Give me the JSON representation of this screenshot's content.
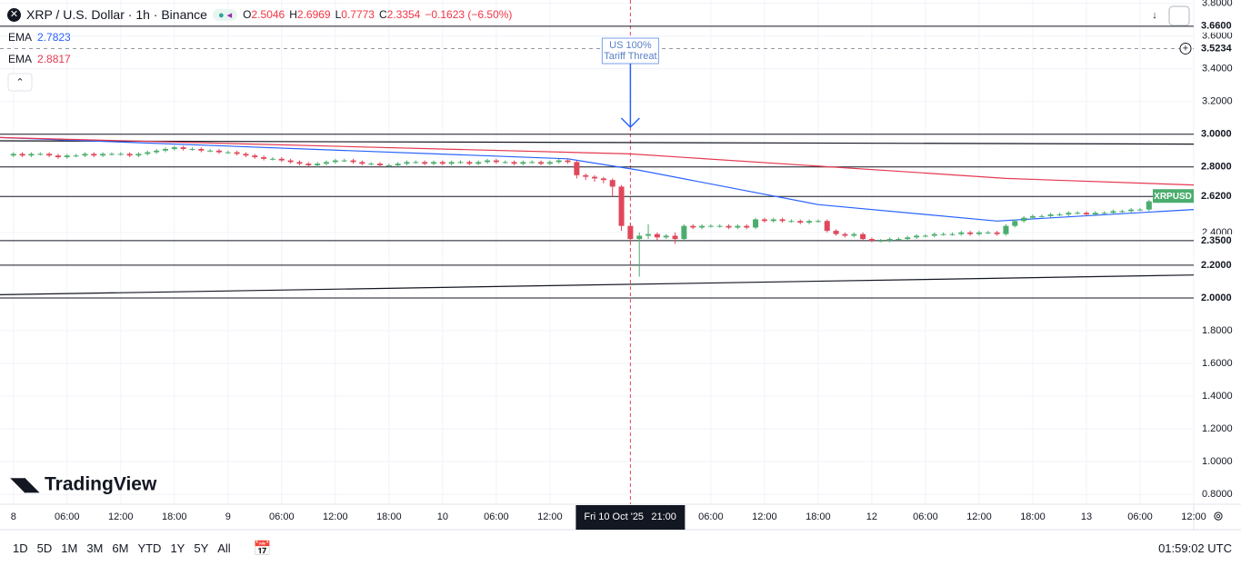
{
  "header": {
    "symbol": "XRP / U.S. Dollar · 1h · Binance",
    "ohlc": [
      {
        "key": "O",
        "value": "2.5046"
      },
      {
        "key": "H",
        "value": "2.6969"
      },
      {
        "key": "L",
        "value": "0.7773"
      },
      {
        "key": "C",
        "value": "2.3354"
      }
    ],
    "change": "−0.1623 (−6.50%)"
  },
  "chart_data": {
    "type": "candlestick",
    "up_color": "#4bad6d",
    "down_color": "#e0475b",
    "open": [
      2.87,
      2.88,
      2.87,
      2.88,
      2.88,
      2.87,
      2.86,
      2.87,
      2.87,
      2.88,
      2.87,
      2.88,
      2.88,
      2.88,
      2.87,
      2.88,
      2.89,
      2.9,
      2.91,
      2.92,
      2.91,
      2.91,
      2.9,
      2.9,
      2.89,
      2.89,
      2.88,
      2.87,
      2.86,
      2.85,
      2.85,
      2.84,
      2.83,
      2.82,
      2.81,
      2.82,
      2.83,
      2.84,
      2.84,
      2.83,
      2.82,
      2.82,
      2.81,
      2.81,
      2.82,
      2.83,
      2.83,
      2.82,
      2.83,
      2.82,
      2.83,
      2.83,
      2.82,
      2.83,
      2.84,
      2.83,
      2.83,
      2.82,
      2.83,
      2.83,
      2.82,
      2.83,
      2.84,
      2.83,
      2.75,
      2.74,
      2.73,
      2.72,
      2.68,
      2.44,
      2.36,
      2.38,
      2.39,
      2.37,
      2.38,
      2.36,
      2.44,
      2.43,
      2.44,
      2.44,
      2.44,
      2.43,
      2.44,
      2.43,
      2.48,
      2.47,
      2.48,
      2.47,
      2.47,
      2.46,
      2.47,
      2.47,
      2.41,
      2.39,
      2.38,
      2.39,
      2.36,
      2.35,
      2.35,
      2.36,
      2.36,
      2.37,
      2.38,
      2.38,
      2.39,
      2.39,
      2.39,
      2.4,
      2.39,
      2.4,
      2.4,
      2.39,
      2.44,
      2.47,
      2.49,
      2.5,
      2.5,
      2.51,
      2.51,
      2.52,
      2.52,
      2.51,
      2.52,
      2.52,
      2.53,
      2.53,
      2.54,
      2.54,
      2.59,
      2.61
    ],
    "high": [
      2.89,
      2.89,
      2.89,
      2.89,
      2.89,
      2.88,
      2.88,
      2.88,
      2.89,
      2.89,
      2.89,
      2.89,
      2.89,
      2.89,
      2.89,
      2.9,
      2.91,
      2.92,
      2.93,
      2.93,
      2.92,
      2.92,
      2.91,
      2.91,
      2.9,
      2.9,
      2.89,
      2.88,
      2.87,
      2.86,
      2.86,
      2.85,
      2.84,
      2.83,
      2.83,
      2.84,
      2.85,
      2.85,
      2.85,
      2.84,
      2.83,
      2.83,
      2.82,
      2.83,
      2.84,
      2.84,
      2.84,
      2.84,
      2.84,
      2.84,
      2.84,
      2.84,
      2.84,
      2.85,
      2.85,
      2.84,
      2.84,
      2.84,
      2.84,
      2.84,
      2.84,
      2.85,
      2.85,
      2.84,
      2.76,
      2.75,
      2.74,
      2.73,
      2.69,
      2.46,
      2.4,
      2.45,
      2.4,
      2.39,
      2.4,
      2.45,
      2.45,
      2.45,
      2.45,
      2.45,
      2.45,
      2.45,
      2.45,
      2.49,
      2.49,
      2.49,
      2.49,
      2.48,
      2.48,
      2.48,
      2.48,
      2.48,
      2.42,
      2.4,
      2.4,
      2.4,
      2.37,
      2.36,
      2.37,
      2.37,
      2.38,
      2.39,
      2.39,
      2.4,
      2.4,
      2.4,
      2.41,
      2.41,
      2.41,
      2.41,
      2.41,
      2.45,
      2.48,
      2.5,
      2.51,
      2.51,
      2.52,
      2.52,
      2.53,
      2.53,
      2.53,
      2.53,
      2.53,
      2.54,
      2.54,
      2.55,
      2.55,
      2.6,
      2.62,
      2.63
    ],
    "low": [
      2.86,
      2.86,
      2.86,
      2.87,
      2.86,
      2.85,
      2.85,
      2.86,
      2.86,
      2.86,
      2.86,
      2.87,
      2.87,
      2.86,
      2.86,
      2.87,
      2.88,
      2.89,
      2.9,
      2.9,
      2.9,
      2.89,
      2.89,
      2.88,
      2.88,
      2.87,
      2.86,
      2.85,
      2.84,
      2.84,
      2.83,
      2.82,
      2.81,
      2.8,
      2.8,
      2.81,
      2.82,
      2.83,
      2.82,
      2.81,
      2.81,
      2.8,
      2.8,
      2.8,
      2.81,
      2.82,
      2.81,
      2.81,
      2.81,
      2.81,
      2.82,
      2.81,
      2.81,
      2.82,
      2.82,
      2.82,
      2.81,
      2.81,
      2.82,
      2.81,
      2.81,
      2.82,
      2.82,
      2.73,
      2.72,
      2.71,
      2.7,
      2.62,
      2.41,
      2.34,
      2.13,
      2.36,
      2.35,
      2.36,
      2.33,
      2.35,
      2.42,
      2.42,
      2.43,
      2.43,
      2.42,
      2.42,
      2.42,
      2.42,
      2.46,
      2.46,
      2.46,
      2.46,
      2.45,
      2.45,
      2.46,
      2.4,
      2.38,
      2.37,
      2.37,
      2.35,
      2.34,
      2.34,
      2.34,
      2.35,
      2.35,
      2.36,
      2.37,
      2.37,
      2.38,
      2.38,
      2.38,
      2.38,
      2.38,
      2.39,
      2.38,
      2.38,
      2.43,
      2.46,
      2.48,
      2.49,
      2.49,
      2.5,
      2.5,
      2.51,
      2.5,
      2.5,
      2.51,
      2.51,
      2.52,
      2.52,
      2.53,
      2.53,
      2.58,
      2.6
    ],
    "close": [
      2.88,
      2.87,
      2.88,
      2.88,
      2.87,
      2.86,
      2.87,
      2.87,
      2.88,
      2.87,
      2.88,
      2.88,
      2.88,
      2.87,
      2.88,
      2.89,
      2.9,
      2.91,
      2.92,
      2.91,
      2.91,
      2.9,
      2.9,
      2.89,
      2.89,
      2.88,
      2.87,
      2.86,
      2.85,
      2.85,
      2.84,
      2.83,
      2.82,
      2.81,
      2.82,
      2.83,
      2.84,
      2.84,
      2.83,
      2.82,
      2.82,
      2.81,
      2.81,
      2.82,
      2.83,
      2.83,
      2.82,
      2.83,
      2.82,
      2.83,
      2.83,
      2.82,
      2.83,
      2.84,
      2.83,
      2.83,
      2.82,
      2.83,
      2.83,
      2.82,
      2.83,
      2.84,
      2.83,
      2.75,
      2.74,
      2.73,
      2.72,
      2.68,
      2.44,
      2.36,
      2.38,
      2.39,
      2.37,
      2.38,
      2.36,
      2.44,
      2.43,
      2.44,
      2.44,
      2.44,
      2.43,
      2.44,
      2.43,
      2.48,
      2.47,
      2.48,
      2.47,
      2.47,
      2.46,
      2.47,
      2.47,
      2.41,
      2.39,
      2.38,
      2.39,
      2.36,
      2.35,
      2.35,
      2.36,
      2.36,
      2.37,
      2.38,
      2.38,
      2.39,
      2.39,
      2.39,
      2.4,
      2.39,
      2.4,
      2.4,
      2.39,
      2.44,
      2.47,
      2.49,
      2.5,
      2.5,
      2.51,
      2.51,
      2.52,
      2.52,
      2.51,
      2.52,
      2.52,
      2.53,
      2.53,
      2.54,
      2.54,
      2.59,
      2.61,
      2.62
    ],
    "series_label": "XRPUSD",
    "lines": [
      {
        "name": "EMA",
        "legend_value": "2.7823",
        "color": "#2962ff",
        "x": [
          -1.5,
          62,
          70,
          90,
          110,
          132
        ],
        "values": [
          2.98,
          2.85,
          2.78,
          2.57,
          2.47,
          2.54
        ]
      },
      {
        "name": "EMA",
        "legend_value": "2.8817",
        "color": "#e53950",
        "x": [
          -1.5,
          69,
          100,
          111,
          132
        ],
        "values": [
          2.98,
          2.88,
          2.77,
          2.73,
          2.69
        ]
      }
    ],
    "trendlines": [
      {
        "x": [
          -1.5,
          132
        ],
        "values": [
          2.96,
          2.94
        ]
      },
      {
        "x": [
          -1.5,
          132
        ],
        "values": [
          2.02,
          2.14
        ]
      }
    ],
    "levels": [
      {
        "value": 3.66,
        "label": "3.6600"
      },
      {
        "value": 3.0,
        "label": "3.0000"
      },
      {
        "value": 2.8,
        "label": "2.8000"
      },
      {
        "value": 2.62,
        "label": "2.6200"
      },
      {
        "value": 2.35,
        "label": "2.3500"
      },
      {
        "value": 2.2,
        "label": "2.2000"
      },
      {
        "value": 2.0,
        "label": "2.0000"
      }
    ],
    "dashed_level": {
      "value": 3.5234,
      "label": "3.5234"
    },
    "xlim": [
      -1.5,
      132
    ],
    "ylim": [
      0.74,
      3.82
    ],
    "xticks": [
      {
        "value": 0,
        "label": "8"
      },
      {
        "value": 6,
        "label": "06:00"
      },
      {
        "value": 12,
        "label": "12:00"
      },
      {
        "value": 18,
        "label": "18:00"
      },
      {
        "value": 24,
        "label": "9"
      },
      {
        "value": 30,
        "label": "06:00"
      },
      {
        "value": 36,
        "label": "12:00"
      },
      {
        "value": 42,
        "label": "18:00"
      },
      {
        "value": 48,
        "label": "10"
      },
      {
        "value": 54,
        "label": "06:00"
      },
      {
        "value": 60,
        "label": "12:00"
      },
      {
        "value": 78,
        "label": "06:00"
      },
      {
        "value": 84,
        "label": "12:00"
      },
      {
        "value": 90,
        "label": "18:00"
      },
      {
        "value": 96,
        "label": "12"
      },
      {
        "value": 102,
        "label": "06:00"
      },
      {
        "value": 108,
        "label": "12:00"
      },
      {
        "value": 114,
        "label": "18:00"
      },
      {
        "value": 120,
        "label": "13"
      },
      {
        "value": 126,
        "label": "06:00"
      },
      {
        "value": 132,
        "label": "12:00"
      }
    ],
    "yticks": [
      {
        "value": 0.8,
        "label": "0.8000"
      },
      {
        "value": 1.0,
        "label": "1.0000"
      },
      {
        "value": 1.2,
        "label": "1.2000"
      },
      {
        "value": 1.4,
        "label": "1.4000"
      },
      {
        "value": 1.6,
        "label": "1.6000"
      },
      {
        "value": 1.8,
        "label": "1.8000"
      },
      {
        "value": 2.4,
        "label": "2.4000"
      },
      {
        "value": 3.2,
        "label": "3.2000"
      },
      {
        "value": 3.4,
        "label": "3.4000"
      },
      {
        "value": 3.6,
        "label": "3.6000"
      },
      {
        "value": 3.8,
        "label": "3.8000"
      }
    ],
    "grid": true,
    "crosshair": {
      "x": 69,
      "date": "Fri 10 Oct '25",
      "time": "21:00"
    },
    "annotation": {
      "x": 69,
      "lines": [
        "US 100%",
        "Tariff Threat"
      ]
    }
  },
  "logo": "TradingView",
  "toolbar": {
    "ranges": [
      "1D",
      "5D",
      "1M",
      "3M",
      "6M",
      "YTD",
      "1Y",
      "5Y",
      "All"
    ],
    "clock": "01:59:02 UTC"
  }
}
